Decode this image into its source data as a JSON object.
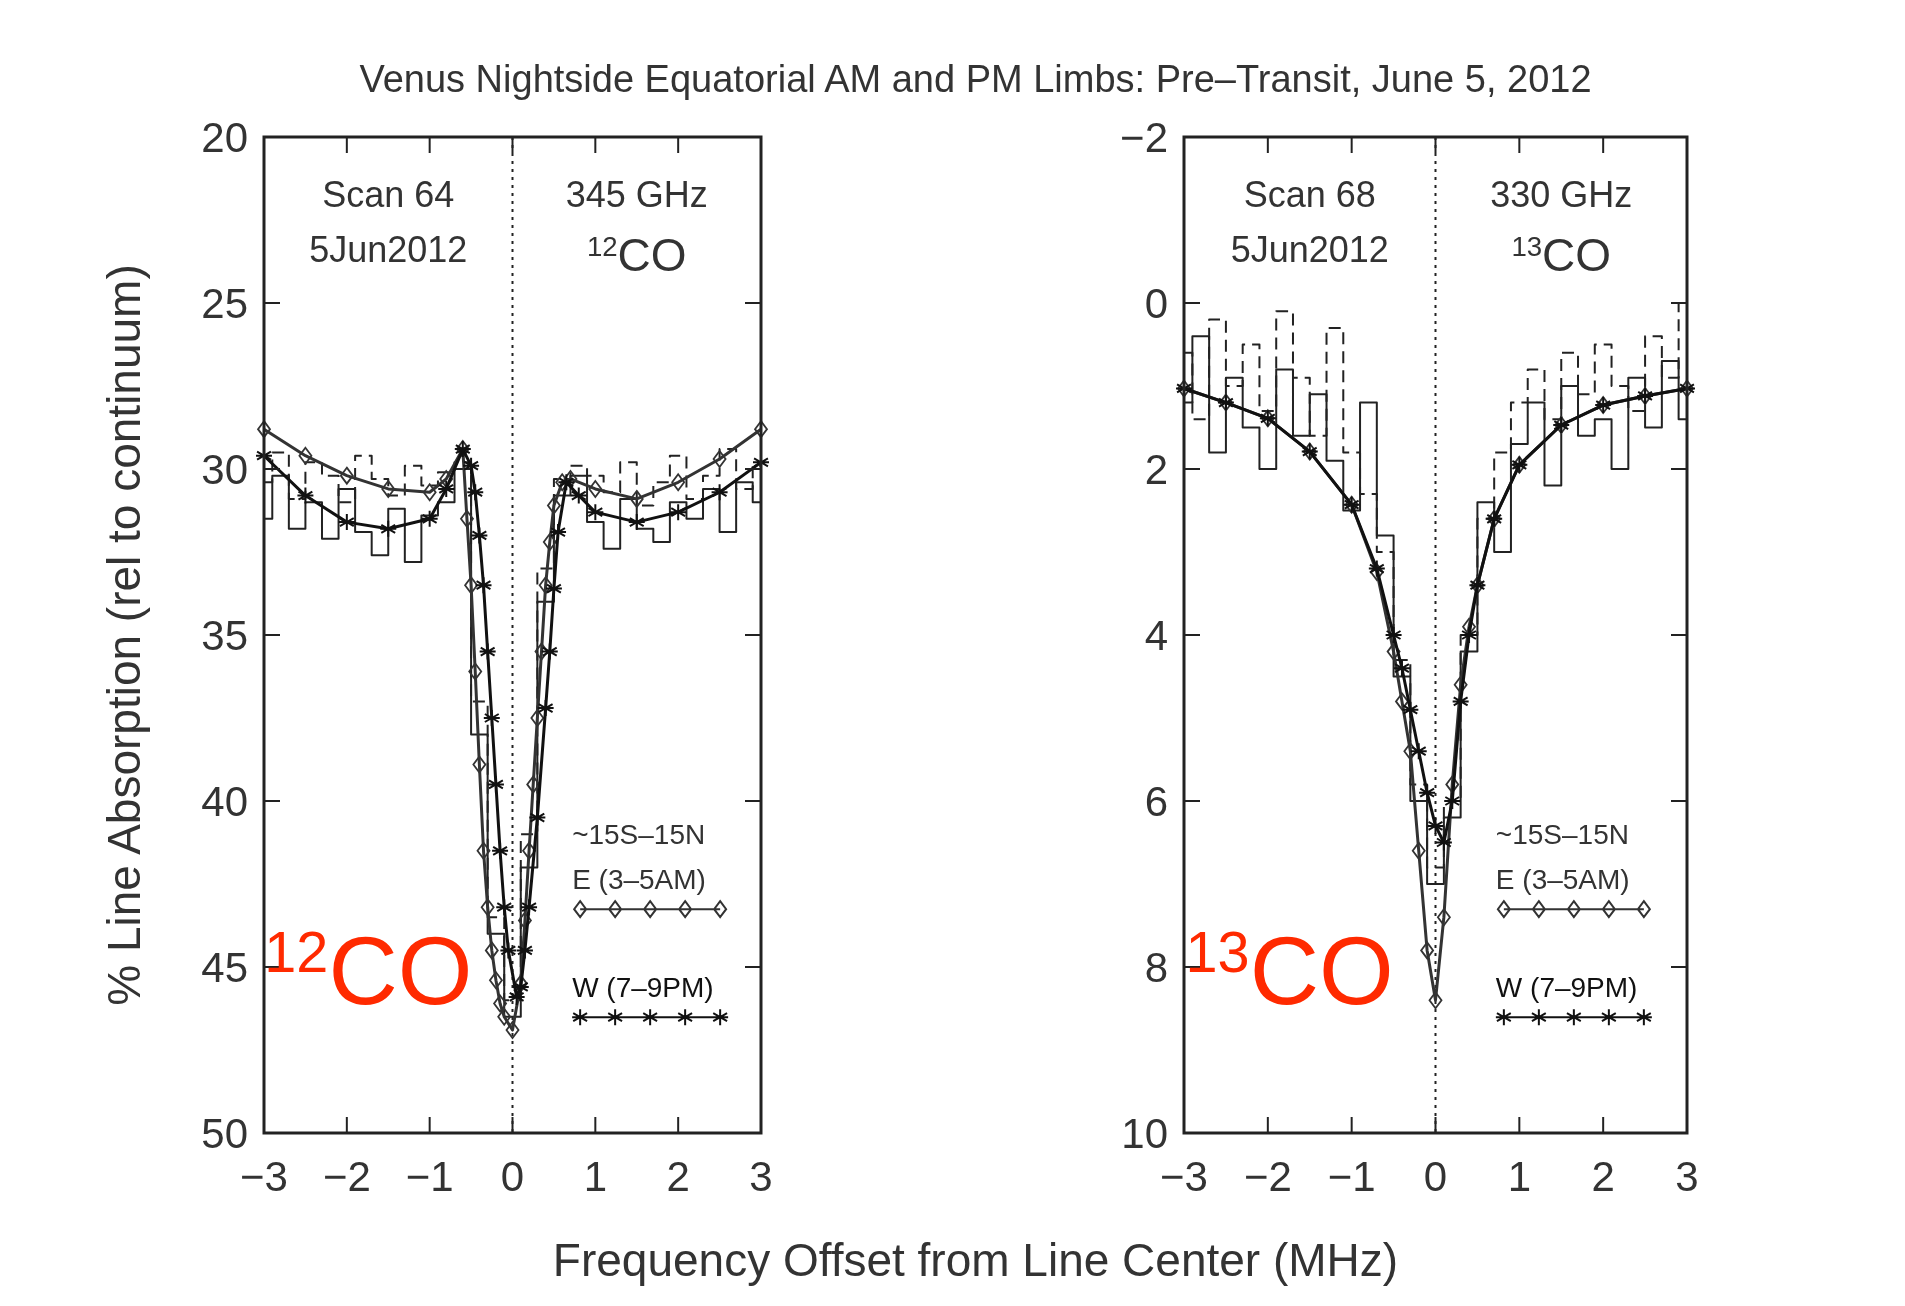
{
  "chart_data": [
    {
      "type": "line",
      "title": "Venus Nightside Equatorial AM and PM Limbs: Pre–Transit, June 5, 2012",
      "ylabel": "% Line Absorption (rel to continuum)",
      "xlabel": "Frequency Offset from Line Center (MHz)",
      "annotations": [
        "Scan 64",
        "5Jun2012",
        "345 GHz",
        "$^{12}$CO",
        "$^{12}$CO"
      ],
      "legend_title": "~15S–15N",
      "legend": "bottom right",
      "grid": false,
      "xlim": [
        -3,
        3
      ],
      "xticks": [
        -3,
        -2,
        -1,
        0,
        1,
        2,
        3
      ],
      "ylim": [
        50,
        20
      ],
      "yticks": [
        20,
        25,
        30,
        35,
        40,
        45,
        50
      ],
      "ref_lines": [
        {
          "axis": "x",
          "value": 0,
          "line_style": "dotted",
          "color": "#222222"
        }
      ],
      "series": [
        {
          "type": "step",
          "color": "#222222",
          "line_style": "solid",
          "marker": "none",
          "x": [
            -3,
            -2.8,
            -2.6,
            -2.4,
            -2.2,
            -2,
            -1.8,
            -1.6,
            -1.4,
            -1.2,
            -1,
            -0.8,
            -0.6,
            -0.4,
            -0.2,
            0,
            0.2,
            0.4,
            0.6,
            0.8,
            1,
            1.2,
            1.4,
            1.6,
            1.8,
            2,
            2.2,
            2.4,
            2.6,
            2.8,
            3
          ],
          "values": [
            31.5,
            30.2,
            31.8,
            31.0,
            32.1,
            30.6,
            31.9,
            32.6,
            31.2,
            32.8,
            31.4,
            31.0,
            30.0,
            38.0,
            44.0,
            46.5,
            42.0,
            34.0,
            30.8,
            30.2,
            31.6,
            32.4,
            30.9,
            31.8,
            32.2,
            31.0,
            31.5,
            30.6,
            31.9,
            30.4,
            31.0
          ]
        },
        {
          "type": "step",
          "color": "#222222",
          "line_style": "dashed",
          "marker": "none",
          "x": [
            -3,
            -2.8,
            -2.6,
            -2.4,
            -2.2,
            -2,
            -1.8,
            -1.6,
            -1.4,
            -1.2,
            -1,
            -0.8,
            -0.6,
            -0.4,
            -0.2,
            0,
            0.2,
            0.4,
            0.6,
            0.8,
            1,
            1.2,
            1.4,
            1.6,
            1.8,
            2,
            2.2,
            2.4,
            2.6,
            2.8,
            3
          ],
          "values": [
            30.4,
            29.5,
            30.9,
            29.8,
            30.2,
            31.0,
            29.6,
            30.3,
            30.8,
            29.9,
            30.5,
            30.1,
            29.8,
            37.0,
            43.5,
            46.0,
            41.0,
            33.0,
            30.3,
            29.9,
            30.2,
            30.7,
            29.8,
            31.1,
            30.4,
            29.6,
            30.9,
            30.2,
            29.4,
            30.6,
            29.9
          ]
        },
        {
          "type": "line",
          "name": "E (3–5AM)",
          "color": "#333333",
          "line_style": "solid",
          "marker": "diamond",
          "x": [
            -3,
            -2.5,
            -2,
            -1.5,
            -1,
            -0.8,
            -0.6,
            -0.55,
            -0.5,
            -0.45,
            -0.4,
            -0.35,
            -0.3,
            -0.25,
            -0.2,
            -0.15,
            -0.1,
            0,
            0.1,
            0.15,
            0.2,
            0.25,
            0.3,
            0.35,
            0.4,
            0.45,
            0.5,
            0.6,
            0.7,
            1,
            1.5,
            2,
            2.5,
            3
          ],
          "values": [
            28.8,
            29.6,
            30.2,
            30.6,
            30.7,
            30.3,
            29.4,
            31.5,
            33.5,
            36.1,
            38.9,
            41.5,
            43.2,
            44.5,
            45.4,
            46.1,
            46.5,
            46.9,
            45.5,
            43.6,
            41.5,
            39.5,
            37.5,
            35.5,
            33.5,
            32.2,
            31.1,
            30.4,
            30.3,
            30.6,
            30.9,
            30.4,
            29.7,
            28.8
          ]
        },
        {
          "type": "line",
          "name": "W (7–9PM)",
          "color": "#111111",
          "line_style": "solid",
          "marker": "cross",
          "x": [
            -3,
            -2.5,
            -2,
            -1.5,
            -1,
            -0.8,
            -0.6,
            -0.5,
            -0.45,
            -0.4,
            -0.35,
            -0.3,
            -0.25,
            -0.2,
            -0.15,
            -0.1,
            -0.05,
            0.05,
            0.1,
            0.15,
            0.2,
            0.3,
            0.4,
            0.45,
            0.5,
            0.55,
            0.65,
            0.8,
            1,
            1.5,
            2,
            2.5,
            3
          ],
          "values": [
            29.6,
            30.8,
            31.6,
            31.8,
            31.5,
            30.6,
            29.4,
            29.9,
            30.7,
            32.0,
            33.5,
            35.5,
            37.5,
            39.5,
            41.5,
            43.2,
            44.5,
            45.9,
            45.6,
            44.5,
            43.2,
            40.5,
            37.2,
            35.5,
            33.6,
            31.9,
            30.4,
            30.8,
            31.3,
            31.6,
            31.3,
            30.7,
            29.8
          ]
        }
      ]
    },
    {
      "type": "line",
      "annotations": [
        "Scan 68",
        "5Jun2012",
        "330 GHz",
        "$^{13}$CO",
        "$^{13}$CO"
      ],
      "legend_title": "~15S–15N",
      "legend": "bottom right",
      "grid": false,
      "xlim": [
        -3,
        3
      ],
      "xticks": [
        -3,
        -2,
        -1,
        0,
        1,
        2,
        3
      ],
      "ylim": [
        10,
        -2
      ],
      "yticks": [
        -2,
        0,
        2,
        4,
        6,
        8,
        10
      ],
      "ref_lines": [
        {
          "axis": "x",
          "value": 0,
          "line_style": "dotted",
          "color": "#222222"
        }
      ],
      "series": [
        {
          "type": "step",
          "color": "#222222",
          "line_style": "solid",
          "marker": "none",
          "x": [
            -3,
            -2.8,
            -2.6,
            -2.4,
            -2.2,
            -2,
            -1.8,
            -1.6,
            -1.4,
            -1.2,
            -1,
            -0.8,
            -0.6,
            -0.4,
            -0.2,
            0,
            0.2,
            0.4,
            0.6,
            0.8,
            1,
            1.2,
            1.4,
            1.6,
            1.8,
            2,
            2.2,
            2.4,
            2.6,
            2.8,
            3
          ],
          "values": [
            1.2,
            0.4,
            1.8,
            0.9,
            1.5,
            2.0,
            0.8,
            1.6,
            1.1,
            1.9,
            2.5,
            1.2,
            2.8,
            4.5,
            6.0,
            7.0,
            6.2,
            4.2,
            2.4,
            3.0,
            1.7,
            1.2,
            2.2,
            1.0,
            1.6,
            1.4,
            2.0,
            0.9,
            1.5,
            0.7,
            1.4
          ]
        },
        {
          "type": "step",
          "color": "#222222",
          "line_style": "dashed",
          "marker": "none",
          "x": [
            -3,
            -2.8,
            -2.6,
            -2.4,
            -2.2,
            -2,
            -1.8,
            -1.6,
            -1.4,
            -1.2,
            -1,
            -0.8,
            -0.6,
            -0.4,
            -0.2,
            0,
            0.2,
            0.4,
            0.6,
            0.8,
            1,
            1.2,
            1.4,
            1.6,
            1.8,
            2,
            2.2,
            2.4,
            2.6,
            2.8,
            3
          ],
          "values": [
            0.6,
            1.4,
            0.2,
            1.0,
            0.5,
            1.3,
            0.1,
            0.9,
            1.6,
            0.3,
            1.8,
            2.3,
            3.0,
            4.3,
            5.8,
            6.8,
            6.0,
            4.0,
            2.6,
            1.8,
            1.2,
            0.8,
            1.4,
            0.6,
            1.1,
            0.5,
            1.0,
            1.3,
            0.4,
            0.9,
            0.0
          ]
        },
        {
          "type": "line",
          "name": "E (3–5AM)",
          "color": "#333333",
          "line_style": "solid",
          "marker": "diamond",
          "x": [
            -3,
            -2.5,
            -2,
            -1.5,
            -1,
            -0.7,
            -0.5,
            -0.4,
            -0.3,
            -0.2,
            -0.1,
            0,
            0.1,
            0.2,
            0.3,
            0.4,
            0.5,
            0.7,
            1,
            1.5,
            2,
            2.5,
            3
          ],
          "values": [
            1.03,
            1.2,
            1.39,
            1.79,
            2.43,
            3.24,
            4.2,
            4.8,
            5.4,
            6.6,
            7.8,
            8.4,
            7.4,
            5.8,
            4.6,
            3.9,
            3.4,
            2.6,
            1.95,
            1.47,
            1.23,
            1.12,
            1.03
          ]
        },
        {
          "type": "line",
          "name": "W (7–9PM)",
          "color": "#111111",
          "line_style": "solid",
          "marker": "cross",
          "x": [
            -3,
            -2.5,
            -2,
            -1.5,
            -1,
            -0.7,
            -0.5,
            -0.4,
            -0.3,
            -0.2,
            -0.1,
            0,
            0.1,
            0.2,
            0.3,
            0.4,
            0.5,
            0.7,
            1,
            1.5,
            2,
            2.5,
            3
          ],
          "values": [
            1.03,
            1.2,
            1.39,
            1.79,
            2.43,
            3.2,
            4.0,
            4.4,
            4.9,
            5.4,
            5.9,
            6.3,
            6.5,
            6.0,
            4.8,
            4.0,
            3.4,
            2.6,
            1.95,
            1.47,
            1.23,
            1.12,
            1.03
          ]
        }
      ]
    }
  ]
}
